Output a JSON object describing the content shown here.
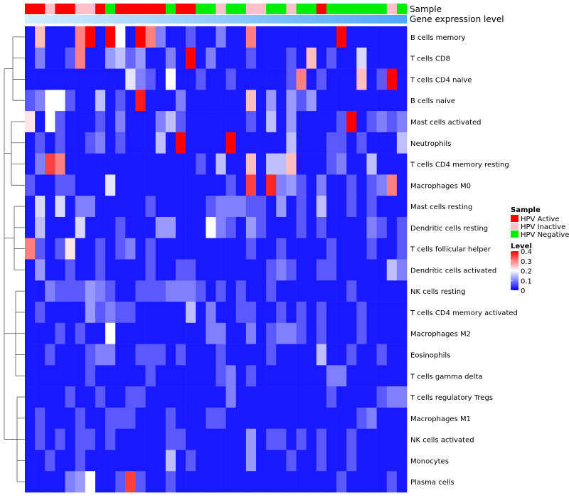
{
  "chart_data": {
    "type": "heatmap",
    "title": "",
    "annotation_tracks": [
      "Sample",
      "Gene expression level"
    ],
    "rows": [
      "B cells memory",
      "T cells CD8",
      "T cells CD4 naive",
      "B cells naive",
      "Mast cells activated",
      "Neutrophils",
      "T cells CD4 memory resting",
      "Macrophages M0",
      "Mast cells resting",
      "Dendritic cells resting",
      "T cells follicular helper",
      "Dendritic cells activated",
      "NK cells resting",
      "T cells CD4 memory activated",
      "Macrophages M2",
      "Eosinophils",
      "T cells gamma delta",
      "T cells regulatory  Tregs",
      "Macrophages M1",
      "NK cells activated",
      "Monocytes",
      "Plasma cells"
    ],
    "sample_groups": [
      "HPV Active",
      "HPV Active",
      "HPV Inactive",
      "HPV Active",
      "HPV Active",
      "HPV Inactive",
      "HPV Inactive",
      "HPV Active",
      "HPV Negative",
      "HPV Active",
      "HPV Active",
      "HPV Active",
      "HPV Active",
      "HPV Active",
      "HPV Negative",
      "HPV Active",
      "HPV Active",
      "HPV Negative",
      "HPV Negative",
      "HPV Inactive",
      "HPV Negative",
      "HPV Negative",
      "HPV Inactive",
      "HPV Inactive",
      "HPV Negative",
      "HPV Negative",
      "HPV Inactive",
      "HPV Negative",
      "HPV Negative",
      "HPV Active",
      "HPV Negative",
      "HPV Negative",
      "HPV Negative",
      "HPV Negative",
      "HPV Negative",
      "HPV Negative",
      "HPV Inactive",
      "HPV Negative"
    ],
    "values": [
      [
        0.02,
        0.25,
        0.02,
        0.02,
        0.02,
        0.3,
        0.4,
        0.02,
        0.4,
        0.2,
        0.02,
        0.4,
        0.3,
        0.1,
        0.02,
        0.02,
        0.07,
        0.02,
        0.02,
        0.1,
        0.02,
        0.02,
        0.3,
        0.02,
        0.02,
        0.02,
        0.02,
        0.02,
        0.02,
        0.02,
        0.02,
        0.4,
        0.02,
        0.02,
        0.02,
        0.02,
        0.02,
        0.02
      ],
      [
        0.02,
        0.1,
        0.02,
        0.02,
        0.07,
        0.3,
        0.02,
        0.02,
        0.12,
        0.15,
        0.08,
        0.12,
        0.02,
        0.02,
        0.1,
        0.02,
        0.4,
        0.02,
        0.1,
        0.02,
        0.02,
        0.02,
        0.07,
        0.02,
        0.02,
        0.02,
        0.07,
        0.02,
        0.25,
        0.02,
        0.07,
        0.02,
        0.02,
        0.17,
        0.02,
        0.02,
        0.02,
        0.02
      ],
      [
        0.02,
        0.02,
        0.02,
        0.02,
        0.02,
        0.02,
        0.02,
        0.02,
        0.02,
        0.02,
        0.18,
        0.1,
        0.07,
        0.02,
        0.2,
        0.02,
        0.02,
        0.07,
        0.02,
        0.02,
        0.07,
        0.02,
        0.02,
        0.02,
        0.02,
        0.02,
        0.07,
        0.3,
        0.02,
        0.07,
        0.02,
        0.02,
        0.02,
        0.25,
        0.02,
        0.07,
        0.4,
        0.02
      ],
      [
        0.07,
        0.1,
        0.2,
        0.2,
        0.07,
        0.02,
        0.02,
        0.15,
        0.02,
        0.07,
        0.02,
        0.38,
        0.02,
        0.02,
        0.02,
        0.1,
        0.02,
        0.02,
        0.02,
        0.02,
        0.02,
        0.02,
        0.25,
        0.02,
        0.12,
        0.02,
        0.12,
        0.07,
        0.12,
        0.02,
        0.02,
        0.02,
        0.02,
        0.02,
        0.02,
        0.02,
        0.02,
        0.02
      ],
      [
        0.22,
        0.02,
        0.2,
        0.07,
        0.02,
        0.02,
        0.02,
        0.07,
        0.02,
        0.1,
        0.02,
        0.02,
        0.02,
        0.1,
        0.15,
        0.07,
        0.02,
        0.02,
        0.02,
        0.02,
        0.02,
        0.02,
        0.07,
        0.02,
        0.15,
        0.02,
        0.12,
        0.02,
        0.02,
        0.02,
        0.02,
        0.07,
        0.4,
        0.02,
        0.07,
        0.1,
        0.07,
        0.1
      ],
      [
        0.02,
        0.07,
        0.02,
        0.07,
        0.02,
        0.02,
        0.07,
        0.1,
        0.02,
        0.07,
        0.02,
        0.02,
        0.02,
        0.15,
        0.02,
        0.4,
        0.02,
        0.02,
        0.02,
        0.02,
        0.4,
        0.02,
        0.02,
        0.02,
        0.02,
        0.02,
        0.15,
        0.02,
        0.02,
        0.02,
        0.07,
        0.07,
        0.02,
        0.07,
        0.02,
        0.02,
        0.02,
        0.15
      ],
      [
        0.02,
        0.1,
        0.35,
        0.3,
        0.02,
        0.02,
        0.02,
        0.02,
        0.02,
        0.02,
        0.02,
        0.02,
        0.02,
        0.02,
        0.02,
        0.02,
        0.02,
        0.07,
        0.02,
        0.15,
        0.02,
        0.02,
        0.25,
        0.02,
        0.15,
        0.15,
        0.25,
        0.02,
        0.02,
        0.02,
        0.07,
        0.1,
        0.02,
        0.02,
        0.15,
        0.02,
        0.02,
        0.02
      ],
      [
        0.07,
        0.02,
        0.02,
        0.07,
        0.07,
        0.02,
        0.02,
        0.02,
        0.18,
        0.02,
        0.02,
        0.02,
        0.02,
        0.02,
        0.02,
        0.02,
        0.02,
        0.02,
        0.02,
        0.02,
        0.07,
        0.02,
        0.35,
        0.02,
        0.37,
        0.1,
        0.12,
        0.07,
        0.02,
        0.1,
        0.02,
        0.02,
        0.07,
        0.02,
        0.07,
        0.1,
        0.3,
        0.02
      ],
      [
        0.02,
        0.17,
        0.02,
        0.17,
        0.02,
        0.1,
        0.1,
        0.02,
        0.02,
        0.02,
        0.02,
        0.02,
        0.07,
        0.02,
        0.02,
        0.02,
        0.02,
        0.02,
        0.07,
        0.1,
        0.1,
        0.1,
        0.07,
        0.07,
        0.02,
        0.12,
        0.02,
        0.07,
        0.02,
        0.15,
        0.02,
        0.02,
        0.07,
        0.02,
        0.07,
        0.02,
        0.02,
        0.02
      ],
      [
        0.02,
        0.15,
        0.02,
        0.02,
        0.02,
        0.17,
        0.02,
        0.02,
        0.02,
        0.07,
        0.02,
        0.02,
        0.02,
        0.12,
        0.12,
        0.02,
        0.02,
        0.02,
        0.2,
        0.1,
        0.07,
        0.02,
        0.12,
        0.07,
        0.02,
        0.02,
        0.02,
        0.07,
        0.02,
        0.07,
        0.02,
        0.02,
        0.02,
        0.02,
        0.1,
        0.07,
        0.02,
        0.07
      ],
      [
        0.3,
        0.07,
        0.02,
        0.07,
        0.22,
        0.02,
        0.02,
        0.07,
        0.02,
        0.07,
        0.1,
        0.02,
        0.07,
        0.02,
        0.02,
        0.02,
        0.02,
        0.02,
        0.02,
        0.02,
        0.02,
        0.02,
        0.07,
        0.02,
        0.02,
        0.07,
        0.02,
        0.02,
        0.02,
        0.02,
        0.07,
        0.02,
        0.02,
        0.02,
        0.07,
        0.02,
        0.02,
        0.07
      ],
      [
        0.02,
        0.12,
        0.02,
        0.02,
        0.07,
        0.02,
        0.02,
        0.07,
        0.02,
        0.02,
        0.02,
        0.02,
        0.07,
        0.02,
        0.02,
        0.07,
        0.07,
        0.02,
        0.02,
        0.02,
        0.02,
        0.02,
        0.02,
        0.02,
        0.07,
        0.1,
        0.07,
        0.02,
        0.02,
        0.07,
        0.07,
        0.02,
        0.02,
        0.02,
        0.02,
        0.02,
        0.15,
        0.1
      ],
      [
        0.02,
        0.02,
        0.1,
        0.07,
        0.07,
        0.07,
        0.12,
        0.1,
        0.07,
        0.02,
        0.02,
        0.07,
        0.07,
        0.07,
        0.1,
        0.1,
        0.1,
        0.07,
        0.02,
        0.07,
        0.02,
        0.07,
        0.02,
        0.02,
        0.07,
        0.02,
        0.02,
        0.02,
        0.02,
        0.02,
        0.02,
        0.02,
        0.07,
        0.02,
        0.02,
        0.02,
        0.02,
        0.02
      ],
      [
        0.02,
        0.07,
        0.02,
        0.02,
        0.02,
        0.02,
        0.12,
        0.07,
        0.1,
        0.07,
        0.07,
        0.02,
        0.02,
        0.02,
        0.02,
        0.02,
        0.15,
        0.02,
        0.1,
        0.02,
        0.02,
        0.07,
        0.07,
        0.02,
        0.02,
        0.07,
        0.02,
        0.07,
        0.02,
        0.07,
        0.02,
        0.02,
        0.02,
        0.07,
        0.02,
        0.02,
        0.02,
        0.02
      ],
      [
        0.02,
        0.02,
        0.02,
        0.07,
        0.02,
        0.07,
        0.02,
        0.02,
        0.2,
        0.02,
        0.02,
        0.02,
        0.02,
        0.02,
        0.02,
        0.02,
        0.02,
        0.02,
        0.1,
        0.1,
        0.02,
        0.02,
        0.1,
        0.02,
        0.07,
        0.1,
        0.1,
        0.07,
        0.02,
        0.07,
        0.02,
        0.02,
        0.02,
        0.07,
        0.02,
        0.02,
        0.02,
        0.02
      ],
      [
        0.02,
        0.02,
        0.07,
        0.02,
        0.02,
        0.02,
        0.07,
        0.1,
        0.1,
        0.02,
        0.02,
        0.07,
        0.07,
        0.07,
        0.02,
        0.07,
        0.02,
        0.02,
        0.02,
        0.07,
        0.02,
        0.02,
        0.02,
        0.02,
        0.07,
        0.02,
        0.02,
        0.02,
        0.02,
        0.15,
        0.02,
        0.02,
        0.07,
        0.02,
        0.02,
        0.07,
        0.02,
        0.02
      ],
      [
        0.02,
        0.02,
        0.02,
        0.02,
        0.02,
        0.02,
        0.07,
        0.02,
        0.02,
        0.02,
        0.02,
        0.02,
        0.07,
        0.02,
        0.02,
        0.02,
        0.02,
        0.02,
        0.02,
        0.07,
        0.1,
        0.02,
        0.07,
        0.02,
        0.02,
        0.02,
        0.02,
        0.02,
        0.02,
        0.02,
        0.1,
        0.1,
        0.02,
        0.02,
        0.02,
        0.02,
        0.02,
        0.02
      ],
      [
        0.02,
        0.02,
        0.02,
        0.02,
        0.07,
        0.02,
        0.02,
        0.07,
        0.02,
        0.02,
        0.07,
        0.07,
        0.02,
        0.02,
        0.02,
        0.02,
        0.02,
        0.02,
        0.02,
        0.02,
        0.1,
        0.02,
        0.02,
        0.02,
        0.02,
        0.02,
        0.02,
        0.02,
        0.02,
        0.02,
        0.07,
        0.02,
        0.02,
        0.02,
        0.02,
        0.07,
        0.1,
        0.1
      ],
      [
        0.02,
        0.07,
        0.02,
        0.02,
        0.02,
        0.07,
        0.02,
        0.02,
        0.07,
        0.07,
        0.07,
        0.02,
        0.02,
        0.02,
        0.07,
        0.02,
        0.02,
        0.02,
        0.07,
        0.07,
        0.02,
        0.02,
        0.02,
        0.02,
        0.02,
        0.02,
        0.02,
        0.02,
        0.02,
        0.02,
        0.02,
        0.02,
        0.02,
        0.07,
        0.1,
        0.02,
        0.02,
        0.02
      ],
      [
        0.02,
        0.07,
        0.02,
        0.07,
        0.02,
        0.07,
        0.07,
        0.02,
        0.07,
        0.02,
        0.02,
        0.02,
        0.02,
        0.02,
        0.07,
        0.07,
        0.02,
        0.02,
        0.02,
        0.02,
        0.02,
        0.02,
        0.12,
        0.02,
        0.07,
        0.07,
        0.02,
        0.07,
        0.02,
        0.07,
        0.02,
        0.02,
        0.07,
        0.02,
        0.02,
        0.02,
        0.02,
        0.02
      ],
      [
        0.02,
        0.02,
        0.07,
        0.02,
        0.02,
        0.07,
        0.02,
        0.02,
        0.02,
        0.02,
        0.02,
        0.02,
        0.02,
        0.02,
        0.15,
        0.02,
        0.07,
        0.02,
        0.02,
        0.02,
        0.02,
        0.02,
        0.12,
        0.02,
        0.02,
        0.02,
        0.07,
        0.02,
        0.02,
        0.07,
        0.02,
        0.02,
        0.07,
        0.02,
        0.02,
        0.02,
        0.02,
        0.02
      ],
      [
        0.02,
        0.02,
        0.02,
        0.02,
        0.1,
        0.12,
        0.2,
        0.02,
        0.02,
        0.07,
        0.35,
        0.07,
        0.02,
        0.02,
        0.07,
        0.02,
        0.02,
        0.02,
        0.02,
        0.02,
        0.02,
        0.02,
        0.02,
        0.02,
        0.02,
        0.02,
        0.02,
        0.02,
        0.02,
        0.02,
        0.02,
        0.07,
        0.02,
        0.02,
        0.02,
        0.02,
        0.07,
        0.02
      ]
    ],
    "legend": {
      "sample_title": "Sample",
      "sample_items": [
        {
          "label": "HPV Active",
          "color": "#ff0000"
        },
        {
          "label": "HPV Inactive",
          "color": "#ffc0cb"
        },
        {
          "label": "HPV Negative",
          "color": "#00ee00"
        }
      ],
      "level_title": "Level",
      "level_ticks": [
        0.4,
        0.3,
        0.2,
        0.1,
        0
      ],
      "level_tick_labels": [
        "0.4",
        "0.3",
        "0.2",
        "0.1",
        "0"
      ],
      "level_range": [
        0,
        0.4
      ]
    },
    "colors": {
      "low": "#0000ff",
      "mid": "#ffffff",
      "high": "#ff0000",
      "expression_start": "#d4eeff",
      "expression_end": "#4fa8ff"
    }
  }
}
